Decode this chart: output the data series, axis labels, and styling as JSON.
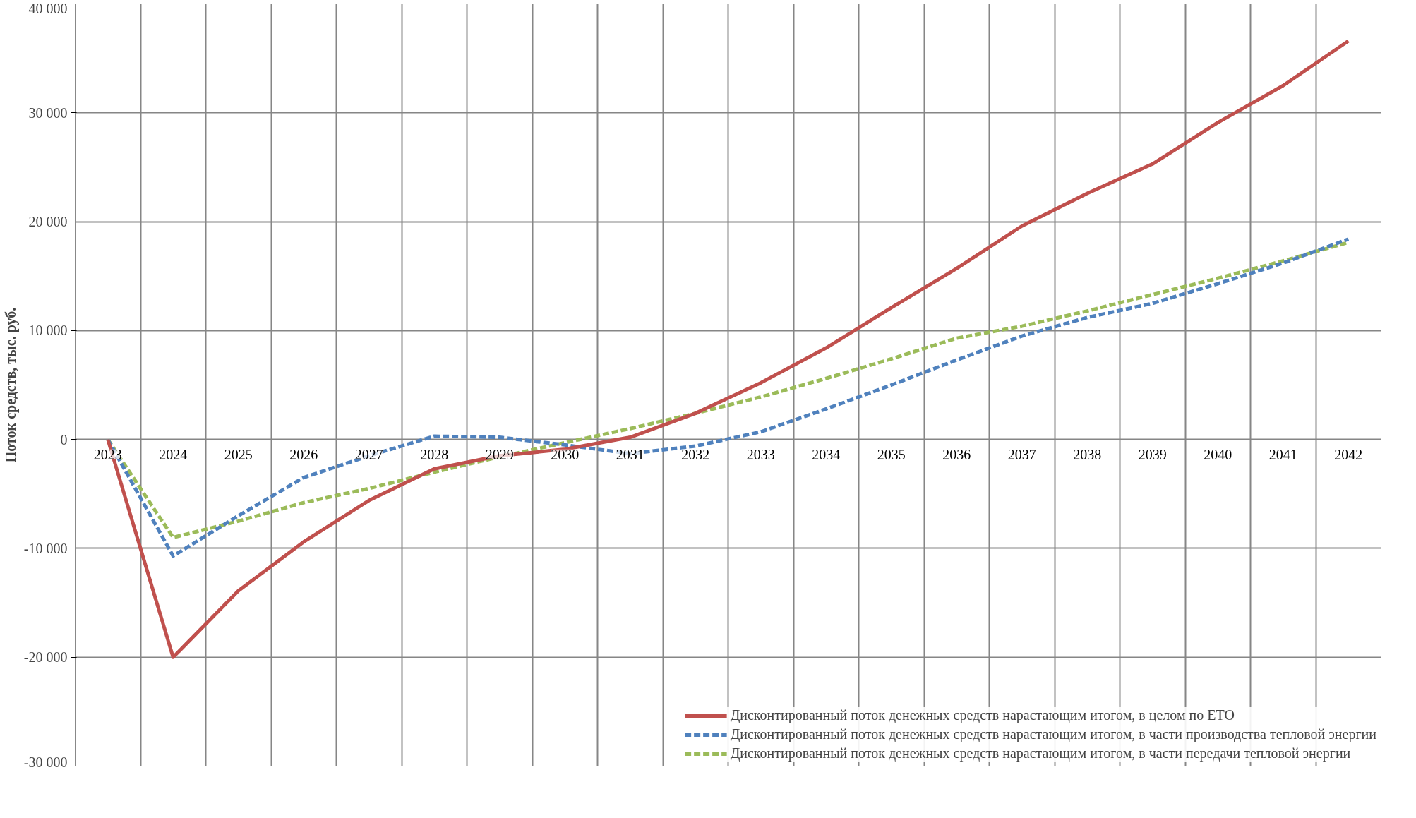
{
  "chart_data": {
    "type": "line",
    "ylabel": "Поток средств, тыс. руб.",
    "categories": [
      "2023",
      "2024",
      "2025",
      "2026",
      "2027",
      "2028",
      "2029",
      "2030",
      "2031",
      "2032",
      "2033",
      "2034",
      "2035",
      "2036",
      "2037",
      "2038",
      "2039",
      "2040",
      "2041",
      "2042"
    ],
    "series": [
      {
        "name": "Дисконтированный поток денежных средств нарастающим итогом, в целом по ЕТО",
        "color": "#c0504d",
        "line_style": "solid",
        "values": [
          0,
          -20000,
          -13900,
          -9400,
          -5600,
          -2700,
          -1500,
          -900,
          200,
          2400,
          5200,
          8400,
          12100,
          15700,
          19600,
          22600,
          25300,
          29100,
          32500,
          36600
        ]
      },
      {
        "name": "Дисконтированный поток денежных средств нарастающим итогом, в части производства тепловой энергии",
        "color": "#4f81bd",
        "line_style": "dashed",
        "values": [
          0,
          -10700,
          -7000,
          -3500,
          -1500,
          300,
          200,
          -500,
          -1300,
          -600,
          700,
          2800,
          5000,
          7300,
          9500,
          11200,
          12500,
          14300,
          16200,
          18400
        ]
      },
      {
        "name": "Дисконтированный поток денежных средств нарастающим итогом, в части передачи тепловой энергии",
        "color": "#9bbb59",
        "line_style": "dashed",
        "values": [
          0,
          -9000,
          -7500,
          -5800,
          -4500,
          -3000,
          -1600,
          -300,
          1000,
          2400,
          3900,
          5600,
          7400,
          9300,
          10400,
          11800,
          13300,
          14800,
          16400,
          18100
        ]
      }
    ],
    "ylim": [
      -30000,
      40000
    ],
    "yticks": [
      {
        "value": -30000,
        "label": "-30 000"
      },
      {
        "value": -20000,
        "label": "-20 000"
      },
      {
        "value": -10000,
        "label": "-10 000"
      },
      0,
      {
        "value": 10000,
        "label": "10 000"
      },
      {
        "value": 20000,
        "label": "20 000"
      },
      {
        "value": 30000,
        "label": "30 000"
      },
      {
        "value": 40000,
        "label": "40 000"
      }
    ],
    "grid": true,
    "legend": "bottom right",
    "marker": "none"
  }
}
